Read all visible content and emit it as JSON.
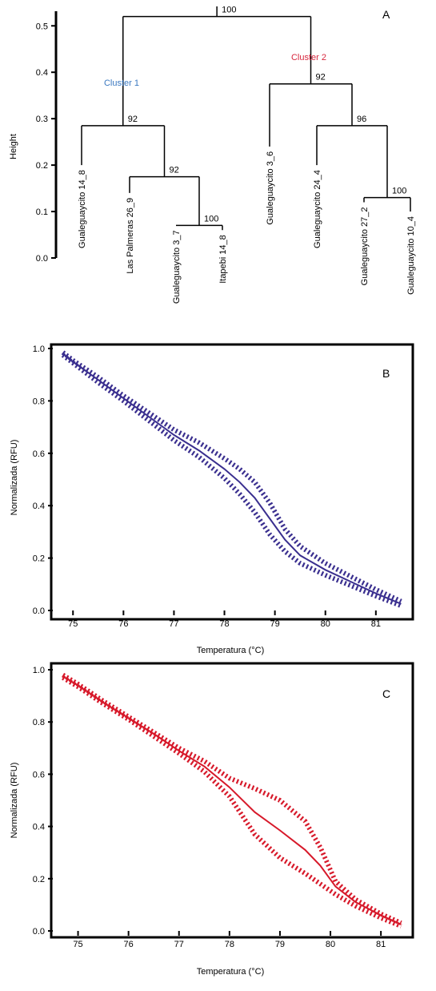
{
  "chart_data": [
    {
      "type": "dendrogram",
      "panel": "A",
      "ylabel": "Height",
      "ylim": [
        0,
        0.55
      ],
      "yticks": [
        "0.0",
        "0.1",
        "0.2",
        "0.3",
        "0.4",
        "0.5"
      ],
      "leaves": [
        "Gualeguaycito 14_8",
        "Las Palmeras 26_9",
        "Gualeguaycito 3_7",
        "Itapebi 14_8",
        "Gualeguaycito 3_6",
        "Gualeguaycito 24_4",
        "Gualeguaycito 27_2",
        "Gualeguaycito 10_4"
      ],
      "merges": [
        {
          "left": "Gualeguaycito 3_7",
          "right": "Itapebi 14_8",
          "height": 0.07,
          "support": "100"
        },
        {
          "left": "Las Palmeras 26_9",
          "right": "merge-1",
          "height": 0.175,
          "support": "92"
        },
        {
          "left": "Gualeguaycito 14_8",
          "right": "merge-2",
          "height": 0.285,
          "support": "92"
        },
        {
          "left": "Gualeguaycito 27_2",
          "right": "Gualeguaycito 10_4",
          "height": 0.13,
          "support": "100"
        },
        {
          "left": "Gualeguaycito 24_4",
          "right": "merge-4",
          "height": 0.285,
          "support": "96"
        },
        {
          "left": "Gualeguaycito 3_6",
          "right": "merge-5",
          "height": 0.375,
          "support": "92"
        },
        {
          "left": "merge-3",
          "right": "merge-6",
          "height": 0.52,
          "support": "100"
        }
      ],
      "clusters": [
        {
          "name": "Cluster 1",
          "color": "#3a78c0"
        },
        {
          "name": "Cluster 2",
          "color": "#d7263d"
        }
      ]
    },
    {
      "type": "line",
      "panel": "B",
      "color": "#3a2f8f",
      "xlabel": "Temperatura (°C)",
      "ylabel": "Normalizada (RFU)",
      "xlim": [
        74.6,
        81.7
      ],
      "ylim": [
        0,
        1.0
      ],
      "xticks": [
        "75",
        "76",
        "77",
        "78",
        "79",
        "80",
        "81"
      ],
      "yticks": [
        "0.0",
        "0.2",
        "0.4",
        "0.6",
        "0.8",
        "1.0"
      ],
      "series": [
        {
          "x": [
            74.8,
            75.0,
            75.5,
            76.0,
            76.5,
            77.0,
            77.5,
            78.0,
            78.3,
            78.6,
            78.9,
            79.2,
            79.5,
            80.0,
            80.5,
            81.0,
            81.5
          ],
          "y": [
            0.98,
            0.95,
            0.88,
            0.81,
            0.74,
            0.67,
            0.61,
            0.54,
            0.49,
            0.43,
            0.35,
            0.27,
            0.21,
            0.155,
            0.11,
            0.065,
            0.025
          ]
        },
        {
          "x": [
            74.8,
            75.0,
            75.5,
            76.0,
            76.5,
            77.0,
            77.5,
            78.0,
            78.3,
            78.6,
            78.9,
            79.2,
            79.5,
            80.0,
            80.5,
            81.0,
            81.5
          ],
          "y": [
            0.985,
            0.955,
            0.89,
            0.82,
            0.755,
            0.69,
            0.64,
            0.58,
            0.54,
            0.49,
            0.41,
            0.31,
            0.245,
            0.18,
            0.13,
            0.08,
            0.035
          ]
        },
        {
          "x": [
            74.8,
            75.0,
            75.5,
            76.0,
            76.5,
            77.0,
            77.5,
            78.0,
            78.3,
            78.6,
            78.9,
            79.2,
            79.5,
            80.0,
            80.5,
            81.0,
            81.5
          ],
          "y": [
            0.975,
            0.945,
            0.87,
            0.8,
            0.725,
            0.65,
            0.585,
            0.505,
            0.445,
            0.375,
            0.29,
            0.225,
            0.18,
            0.135,
            0.095,
            0.055,
            0.018
          ]
        }
      ]
    },
    {
      "type": "line",
      "panel": "C",
      "color": "#d7192a",
      "xlabel": "Temperatura (°C)",
      "ylabel": "Normalizada (RFU)",
      "xlim": [
        74.5,
        81.6
      ],
      "ylim": [
        0,
        1.0
      ],
      "xticks": [
        "75",
        "76",
        "77",
        "78",
        "79",
        "80",
        "81"
      ],
      "yticks": [
        "0.0",
        "0.2",
        "0.4",
        "0.6",
        "0.8",
        "1.0"
      ],
      "series": [
        {
          "x": [
            74.7,
            75.0,
            75.5,
            76.0,
            76.5,
            77.0,
            77.5,
            78.0,
            78.5,
            79.0,
            79.5,
            79.8,
            80.1,
            80.5,
            81.0,
            81.4
          ],
          "y": [
            0.975,
            0.94,
            0.875,
            0.815,
            0.755,
            0.69,
            0.63,
            0.55,
            0.455,
            0.385,
            0.31,
            0.25,
            0.17,
            0.11,
            0.06,
            0.025
          ]
        },
        {
          "x": [
            74.7,
            75.0,
            75.5,
            76.0,
            76.5,
            77.0,
            77.5,
            78.0,
            78.5,
            79.0,
            79.5,
            79.8,
            80.1,
            80.5,
            81.0,
            81.4
          ],
          "y": [
            0.98,
            0.945,
            0.88,
            0.82,
            0.76,
            0.7,
            0.65,
            0.585,
            0.545,
            0.5,
            0.42,
            0.32,
            0.19,
            0.12,
            0.065,
            0.03
          ]
        },
        {
          "x": [
            74.7,
            75.0,
            75.5,
            76.0,
            76.5,
            77.0,
            77.5,
            78.0,
            78.5,
            79.0,
            79.5,
            79.8,
            80.1,
            80.5,
            81.0,
            81.4
          ],
          "y": [
            0.97,
            0.935,
            0.87,
            0.81,
            0.745,
            0.68,
            0.61,
            0.515,
            0.37,
            0.28,
            0.22,
            0.18,
            0.14,
            0.095,
            0.05,
            0.018
          ]
        }
      ]
    }
  ]
}
